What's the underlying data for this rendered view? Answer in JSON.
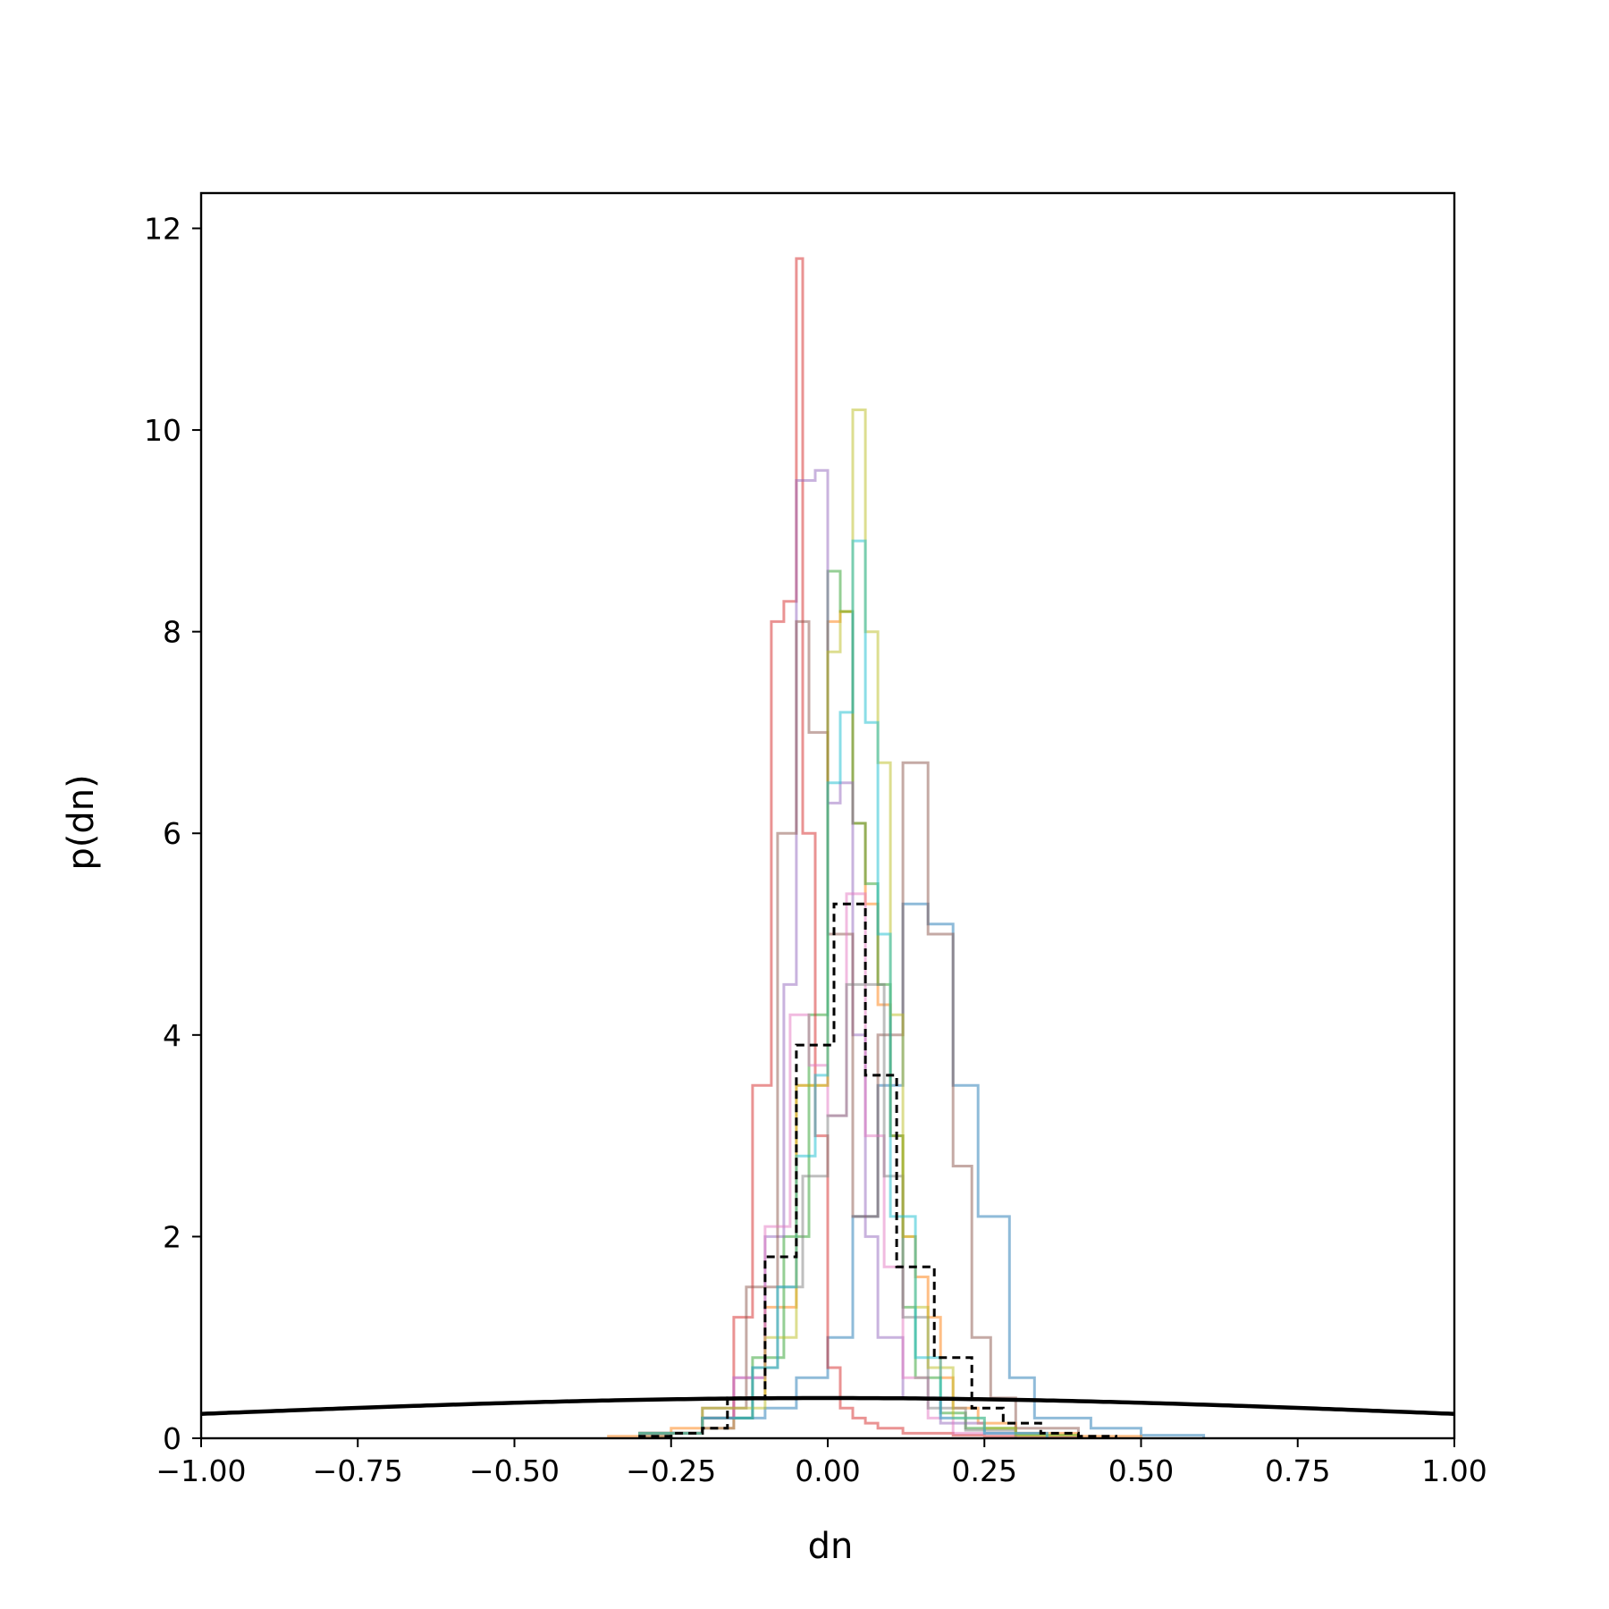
{
  "chart_data": {
    "type": "histogram",
    "title": "",
    "xlabel": "dn",
    "ylabel": "p(dn)",
    "xlim": [
      -1.0,
      1.0
    ],
    "ylim": [
      0,
      12.35
    ],
    "xticks": [
      -1.0,
      -0.75,
      -0.5,
      -0.25,
      0.0,
      0.25,
      0.5,
      0.75,
      1.0
    ],
    "xtick_labels": [
      "−1.00",
      "−0.75",
      "−0.50",
      "−0.25",
      "0.00",
      "0.25",
      "0.50",
      "0.75",
      "1.00"
    ],
    "yticks": [
      0,
      2,
      4,
      6,
      8,
      10,
      12
    ],
    "ytick_labels": [
      "0",
      "2",
      "4",
      "6",
      "8",
      "10",
      "12"
    ],
    "grid": false,
    "legend": "none",
    "series": [
      {
        "color": "#1f77b4",
        "edges": [
          -0.3,
          -0.25,
          -0.2,
          -0.15,
          -0.1,
          -0.05,
          0.0,
          0.04,
          0.08,
          0.12,
          0.16,
          0.2,
          0.24,
          0.29,
          0.33,
          0.42,
          0.5,
          0.6
        ],
        "values": [
          0.02,
          0.05,
          0.1,
          0.2,
          0.3,
          0.6,
          1.0,
          2.2,
          3.5,
          5.3,
          5.1,
          3.5,
          2.2,
          0.6,
          0.2,
          0.1,
          0.03
        ]
      },
      {
        "color": "#ff7f0e",
        "edges": [
          -0.35,
          -0.25,
          -0.15,
          -0.1,
          -0.05,
          0.0,
          0.02,
          0.04,
          0.06,
          0.08,
          0.1,
          0.12,
          0.14,
          0.16,
          0.18,
          0.2,
          0.24,
          0.3,
          0.4,
          0.5
        ],
        "values": [
          0.02,
          0.1,
          0.4,
          1.3,
          3.5,
          8.1,
          8.2,
          6.1,
          5.3,
          4.3,
          3.0,
          2.0,
          1.6,
          1.2,
          0.6,
          0.3,
          0.15,
          0.05,
          0.02
        ]
      },
      {
        "color": "#2ca02c",
        "edges": [
          -0.3,
          -0.2,
          -0.12,
          -0.07,
          -0.03,
          0.0,
          0.02,
          0.04,
          0.06,
          0.08,
          0.1,
          0.12,
          0.14,
          0.18,
          0.22,
          0.3,
          0.4
        ],
        "values": [
          0.05,
          0.2,
          0.8,
          2.0,
          4.2,
          8.6,
          8.2,
          6.1,
          5.5,
          4.5,
          3.0,
          1.3,
          0.6,
          0.25,
          0.1,
          0.03
        ]
      },
      {
        "color": "#d62728",
        "edges": [
          -0.3,
          -0.2,
          -0.15,
          -0.12,
          -0.09,
          -0.07,
          -0.05,
          -0.04,
          -0.02,
          0.0,
          0.02,
          0.04,
          0.06,
          0.08,
          0.12,
          0.16,
          0.2,
          0.25,
          0.3,
          0.4
        ],
        "values": [
          0.05,
          0.2,
          1.2,
          3.5,
          8.1,
          8.3,
          11.7,
          6.0,
          3.0,
          0.7,
          0.3,
          0.2,
          0.15,
          0.1,
          0.05,
          0.05,
          0.03,
          0.02,
          0.01
        ]
      },
      {
        "color": "#9467bd",
        "edges": [
          -0.3,
          -0.2,
          -0.15,
          -0.1,
          -0.07,
          -0.05,
          -0.02,
          0.0,
          0.02,
          0.04,
          0.06,
          0.08,
          0.12,
          0.18,
          0.25,
          0.35
        ],
        "values": [
          0.05,
          0.2,
          0.6,
          2.0,
          4.5,
          9.5,
          9.6,
          6.3,
          6.5,
          4.0,
          2.0,
          1.0,
          0.4,
          0.15,
          0.05
        ]
      },
      {
        "color": "#8c564b",
        "edges": [
          -0.3,
          -0.2,
          -0.13,
          -0.08,
          -0.05,
          -0.03,
          0.0,
          0.04,
          0.08,
          0.12,
          0.16,
          0.2,
          0.23,
          0.26,
          0.3,
          0.4
        ],
        "values": [
          0.05,
          0.3,
          1.5,
          6.0,
          8.1,
          7.0,
          5.0,
          2.2,
          4.0,
          6.7,
          5.0,
          2.7,
          1.0,
          0.4,
          0.1
        ]
      },
      {
        "color": "#e377c2",
        "edges": [
          -0.3,
          -0.2,
          -0.15,
          -0.1,
          -0.06,
          -0.03,
          0.0,
          0.03,
          0.06,
          0.09,
          0.12,
          0.16,
          0.2,
          0.3
        ],
        "values": [
          0.05,
          0.2,
          0.6,
          2.1,
          4.2,
          3.7,
          3.2,
          5.4,
          3.0,
          1.7,
          0.6,
          0.2,
          0.05
        ]
      },
      {
        "color": "#7f7f7f",
        "edges": [
          -0.3,
          -0.2,
          -0.12,
          -0.08,
          -0.04,
          0.0,
          0.03,
          0.06,
          0.09,
          0.12,
          0.16,
          0.22,
          0.3
        ],
        "values": [
          0.05,
          0.2,
          0.7,
          1.5,
          2.6,
          3.2,
          4.5,
          4.5,
          2.6,
          1.2,
          0.3,
          0.08
        ]
      },
      {
        "color": "#bcbd22",
        "edges": [
          -0.3,
          -0.2,
          -0.1,
          -0.05,
          0.0,
          0.02,
          0.04,
          0.06,
          0.08,
          0.1,
          0.12,
          0.14,
          0.16,
          0.2,
          0.25,
          0.3,
          0.4
        ],
        "values": [
          0.05,
          0.3,
          1.0,
          3.5,
          7.8,
          8.2,
          10.2,
          8.0,
          6.7,
          4.2,
          2.0,
          1.3,
          0.7,
          0.2,
          0.1,
          0.03
        ]
      },
      {
        "color": "#17becf",
        "edges": [
          -0.3,
          -0.2,
          -0.12,
          -0.08,
          -0.05,
          -0.02,
          0.0,
          0.02,
          0.04,
          0.06,
          0.08,
          0.1,
          0.14,
          0.18,
          0.25,
          0.35
        ],
        "values": [
          0.05,
          0.2,
          0.7,
          1.5,
          2.8,
          3.6,
          6.5,
          7.2,
          8.9,
          7.1,
          5.0,
          2.2,
          0.8,
          0.2,
          0.05
        ]
      }
    ],
    "combined_series": {
      "color": "#000000",
      "style": "dashed",
      "edges": [
        -0.3,
        -0.25,
        -0.2,
        -0.16,
        -0.1,
        -0.05,
        0.01,
        0.06,
        0.11,
        0.17,
        0.23,
        0.28,
        0.34,
        0.4,
        0.46
      ],
      "values": [
        0.02,
        0.05,
        0.1,
        0.4,
        1.8,
        3.9,
        5.3,
        3.6,
        1.7,
        0.8,
        0.3,
        0.15,
        0.05,
        0.02
      ]
    },
    "prior_curve": {
      "color": "#000000",
      "type": "normal",
      "mean": 0.0,
      "sd": 1.0
    }
  }
}
